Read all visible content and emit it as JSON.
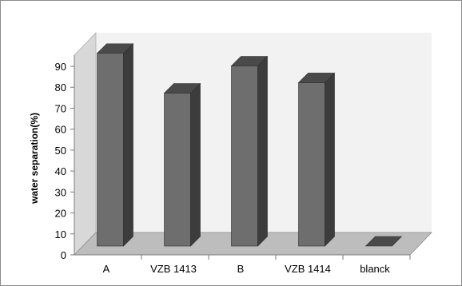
{
  "chart_data": {
    "type": "bar",
    "style": "3d-column",
    "categories": [
      "A",
      "VZB 1413",
      "B",
      "VZB 1414",
      "blanck"
    ],
    "values": [
      92,
      73,
      86,
      78,
      0
    ],
    "title": "",
    "xlabel": "",
    "ylabel": "water separation(%)",
    "ylim": [
      0,
      90
    ],
    "yticks": [
      0,
      10,
      20,
      30,
      40,
      50,
      60,
      70,
      80,
      90
    ],
    "grid": false,
    "legend": "none",
    "colors": {
      "bar_front": "#6e6e6e",
      "bar_side": "#3c3c3c",
      "bar_top": "#4a4a4a",
      "floor": "#bdbdbd",
      "back_wall": "#f2f2f2",
      "side_wall": "#d8d8d8"
    }
  }
}
